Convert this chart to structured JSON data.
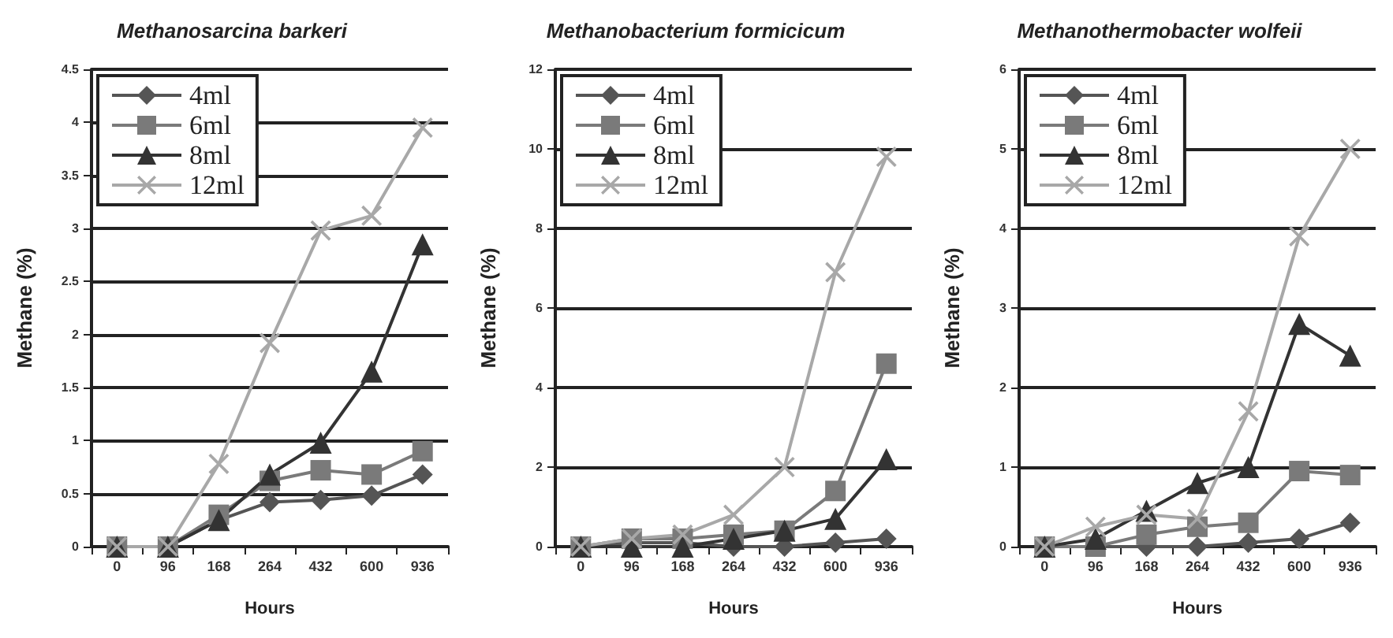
{
  "chart_data": [
    {
      "type": "line",
      "title": "Methanosarcina barkeri",
      "xlabel": "Hours",
      "ylabel": "Methane (%)",
      "categories": [
        "0",
        "96",
        "168",
        "264",
        "432",
        "600",
        "936"
      ],
      "ylim": [
        0,
        4.5
      ],
      "yticks": [
        0,
        0.5,
        1,
        1.5,
        2,
        2.5,
        3,
        3.5,
        4,
        4.5
      ],
      "grid": "y",
      "legend": "top left",
      "series": [
        {
          "name": "4ml",
          "color": "#555555",
          "marker": "diamond",
          "values": [
            0,
            0,
            0.25,
            0.42,
            0.44,
            0.48,
            0.68
          ]
        },
        {
          "name": "6ml",
          "color": "#7a7a7a",
          "marker": "square",
          "values": [
            0,
            0,
            0.3,
            0.62,
            0.72,
            0.68,
            0.9
          ]
        },
        {
          "name": "8ml",
          "color": "#333333",
          "marker": "triangle",
          "values": [
            0,
            0,
            0.25,
            0.68,
            0.98,
            1.65,
            2.85
          ]
        },
        {
          "name": "12ml",
          "color": "#a8a8a8",
          "marker": "cross",
          "values": [
            0,
            0,
            0.78,
            1.92,
            2.98,
            3.12,
            3.95
          ]
        }
      ]
    },
    {
      "type": "line",
      "title": "Methanobacterium formicicum",
      "xlabel": "Hours",
      "ylabel": "Methane (%)",
      "categories": [
        "0",
        "96",
        "168",
        "264",
        "432",
        "600",
        "936"
      ],
      "ylim": [
        0,
        12
      ],
      "yticks": [
        0,
        2,
        4,
        6,
        8,
        10,
        12
      ],
      "grid": "y",
      "legend": "top left",
      "series": [
        {
          "name": "4ml",
          "color": "#555555",
          "marker": "diamond",
          "values": [
            0,
            0.1,
            0.1,
            0,
            0,
            0.1,
            0.2
          ]
        },
        {
          "name": "6ml",
          "color": "#7a7a7a",
          "marker": "square",
          "values": [
            0,
            0.2,
            0.2,
            0.3,
            0.4,
            1.4,
            4.6
          ]
        },
        {
          "name": "8ml",
          "color": "#333333",
          "marker": "triangle",
          "values": [
            0,
            0,
            0,
            0.2,
            0.4,
            0.7,
            2.2
          ]
        },
        {
          "name": "12ml",
          "color": "#a8a8a8",
          "marker": "cross",
          "values": [
            0,
            0.2,
            0.3,
            0.8,
            2,
            6.9,
            9.8
          ]
        }
      ]
    },
    {
      "type": "line",
      "title": "Methanothermobacter wolfeii",
      "xlabel": "Hours",
      "ylabel": "Methane (%)",
      "categories": [
        "0",
        "96",
        "168",
        "264",
        "432",
        "600",
        "936"
      ],
      "ylim": [
        0,
        6
      ],
      "yticks": [
        0,
        1,
        2,
        3,
        4,
        5,
        6
      ],
      "grid": "y",
      "legend": "top left",
      "series": [
        {
          "name": "4ml",
          "color": "#555555",
          "marker": "diamond",
          "values": [
            0,
            0,
            0,
            0,
            0.05,
            0.1,
            0.3
          ]
        },
        {
          "name": "6ml",
          "color": "#7a7a7a",
          "marker": "square",
          "values": [
            0,
            0,
            0.15,
            0.25,
            0.3,
            0.95,
            0.9
          ]
        },
        {
          "name": "8ml",
          "color": "#333333",
          "marker": "triangle",
          "values": [
            0,
            0.1,
            0.45,
            0.8,
            1,
            2.8,
            2.4
          ]
        },
        {
          "name": "12ml",
          "color": "#a8a8a8",
          "marker": "cross",
          "values": [
            0,
            0.25,
            0.4,
            0.35,
            1.7,
            3.9,
            5
          ]
        }
      ]
    }
  ]
}
